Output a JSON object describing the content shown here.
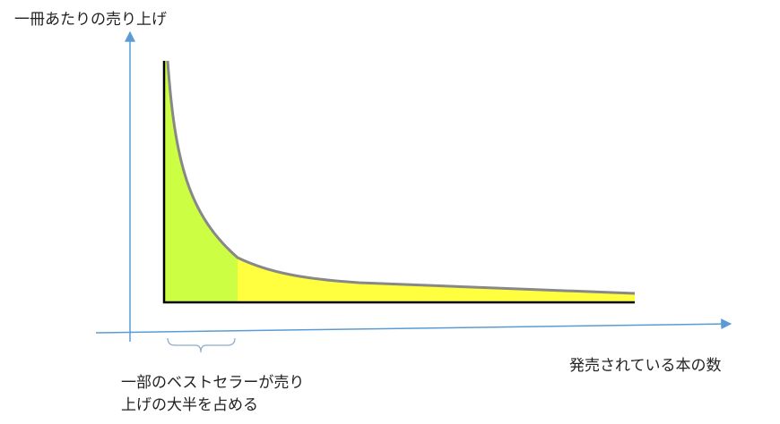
{
  "axes": {
    "y_label": "一冊あたりの売り上げ",
    "x_label": "発売されている本の数"
  },
  "annotation": {
    "lines": [
      "一部のベストセラーが売り",
      "上げの大半を占める"
    ]
  }
}
